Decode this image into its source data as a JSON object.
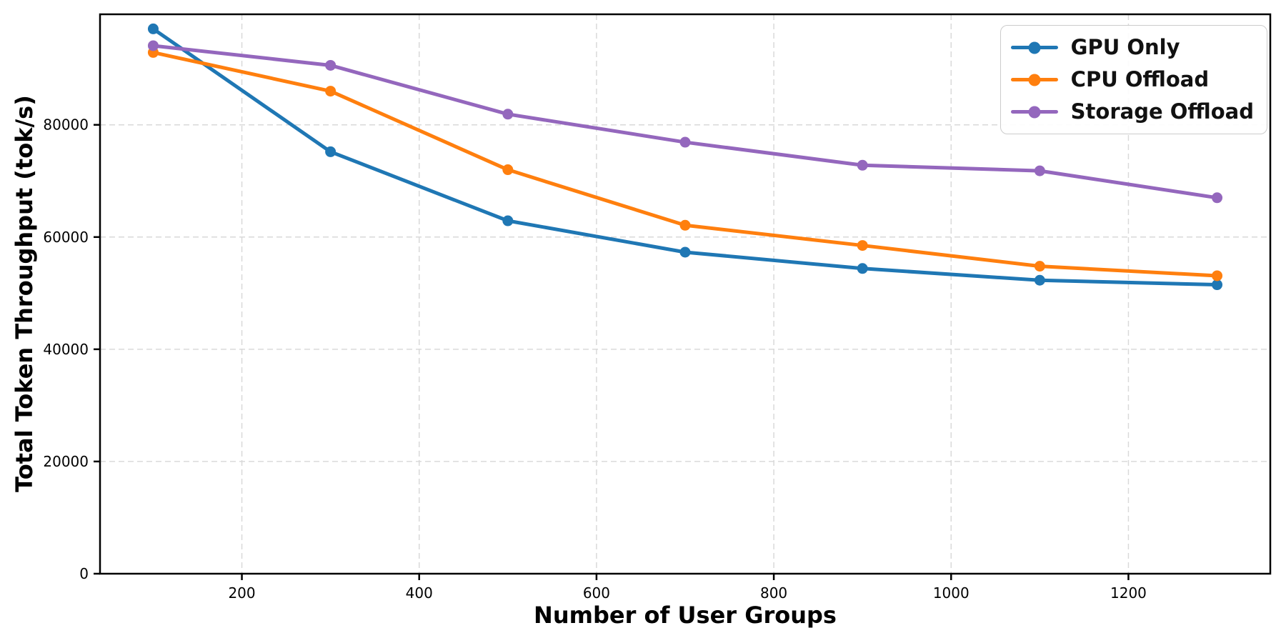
{
  "chart_data": {
    "type": "line",
    "title": "",
    "xlabel": "Number of User Groups",
    "ylabel": "Total Token Throughput (tok/s)",
    "x": [
      100,
      300,
      500,
      700,
      900,
      1100,
      1300
    ],
    "series": [
      {
        "name": "GPU Only",
        "color": "#1f77b4",
        "values": [
          97100,
          75200,
          62900,
          57300,
          54400,
          52300,
          51500
        ]
      },
      {
        "name": "CPU Offload",
        "color": "#ff7f0e",
        "values": [
          92900,
          86000,
          72000,
          62100,
          58500,
          54800,
          53100
        ]
      },
      {
        "name": "Storage Offload",
        "color": "#9467bd",
        "values": [
          94100,
          90600,
          81900,
          76900,
          72800,
          71800,
          67000
        ]
      }
    ],
    "xticks": [
      200,
      400,
      600,
      800,
      1000,
      1200
    ],
    "yticks": [
      0,
      20000,
      40000,
      60000,
      80000
    ],
    "xlim": [
      40,
      1360
    ],
    "ylim": [
      0,
      99700
    ],
    "grid": {
      "visible": true,
      "style": "dashed",
      "color": "#d9d9d9"
    },
    "legend": {
      "position": "upper right"
    },
    "marker": "circle",
    "line_width": 5,
    "marker_radius": 7.5,
    "spine_color": "#000000"
  }
}
